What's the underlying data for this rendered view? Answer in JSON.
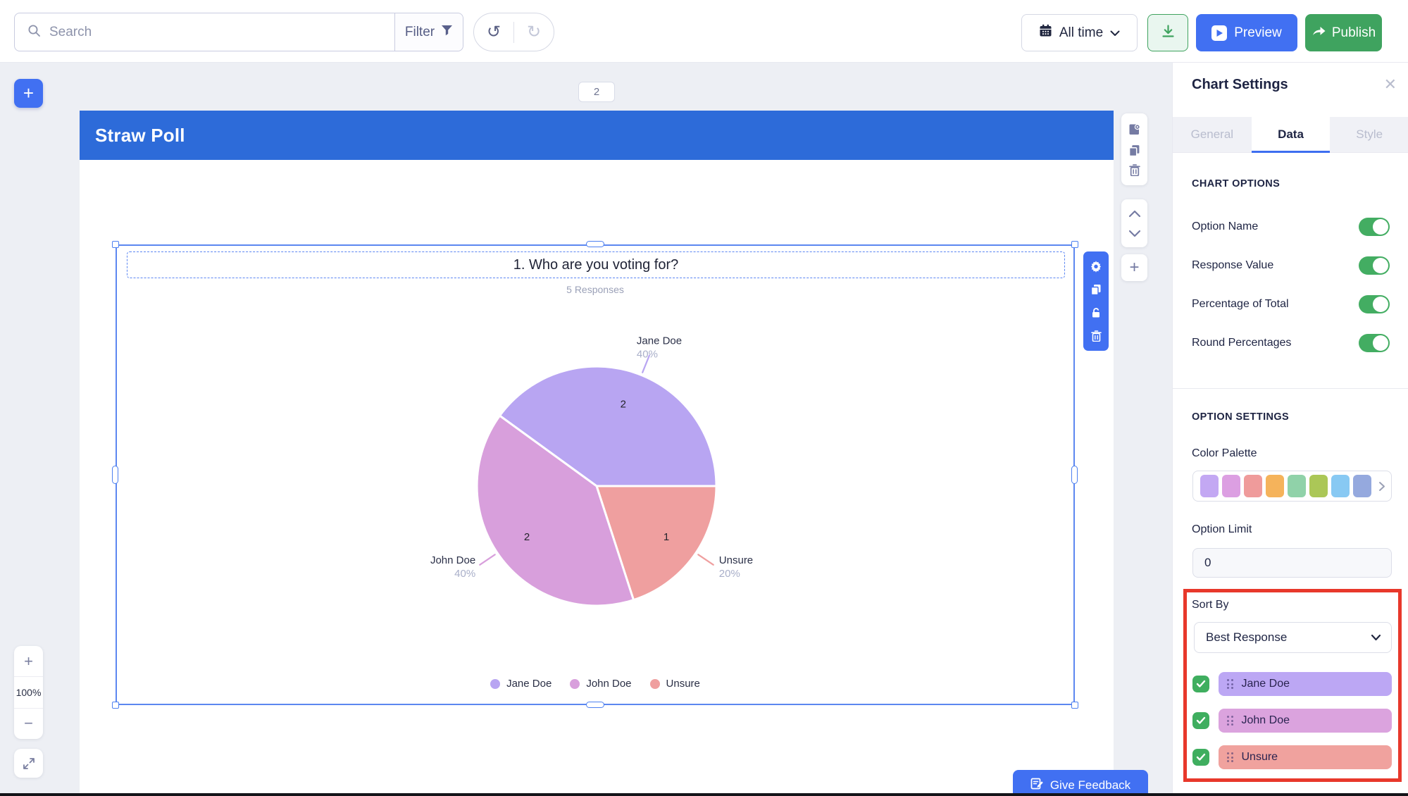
{
  "topbar": {
    "search_placeholder": "Search",
    "filter_label": "Filter",
    "time_range_value": "All time",
    "preview_label": "Preview",
    "publish_label": "Publish"
  },
  "canvas": {
    "page_number": "2",
    "section_title": "Straw Poll",
    "zoom_level": "100%",
    "give_feedback_label": "Give Feedback"
  },
  "chart_data": {
    "type": "pie",
    "title": "1. Who are you voting for?",
    "subtitle": "5 Responses",
    "total_responses": 5,
    "start_angle_deg": -54,
    "value_label_radius": 0.72,
    "slices": [
      {
        "name": "Jane Doe",
        "value": 2,
        "percent": "40%",
        "color": "#b8a5f2",
        "callout_angle": 22
      },
      {
        "name": "Unsure",
        "value": 1,
        "percent": "20%",
        "color": "#ef9f9f",
        "callout_angle": 124
      },
      {
        "name": "John Doe",
        "value": 2,
        "percent": "40%",
        "color": "#d89fdc",
        "callout_angle": 236
      }
    ],
    "legend": [
      {
        "label": "Jane Doe",
        "color": "#b8a5f2"
      },
      {
        "label": "John Doe",
        "color": "#d89fdc"
      },
      {
        "label": "Unsure",
        "color": "#ef9f9f"
      }
    ]
  },
  "panel": {
    "title": "Chart Settings",
    "tabs": [
      {
        "label": "General",
        "active": false
      },
      {
        "label": "Data",
        "active": true
      },
      {
        "label": "Style",
        "active": false
      }
    ],
    "chart_options_heading": "CHART OPTIONS",
    "toggles": [
      {
        "label": "Option Name",
        "on": true
      },
      {
        "label": "Response Value",
        "on": true
      },
      {
        "label": "Percentage of Total",
        "on": true
      },
      {
        "label": "Round Percentages",
        "on": true
      }
    ],
    "option_settings_heading": "OPTION SETTINGS",
    "color_palette_label": "Color Palette",
    "palette_colors": [
      "#c3a8f3",
      "#dc9fe2",
      "#ef9b9b",
      "#f5b35b",
      "#90d2a9",
      "#abc757",
      "#88c9f3",
      "#95a9de"
    ],
    "option_limit_label": "Option Limit",
    "option_limit_value": "0",
    "sort_by_label": "Sort By",
    "sort_by_value": "Best Response",
    "options": [
      {
        "label": "Jane Doe",
        "color": "#bca7f4",
        "checked": true
      },
      {
        "label": "John Doe",
        "color": "#dba3de",
        "checked": true
      },
      {
        "label": "Unsure",
        "color": "#f0a29e",
        "checked": true
      }
    ]
  },
  "colors": {
    "accent_blue": "#4170f2",
    "header_blue": "#2d6bd9",
    "publish_green": "#3fa35f",
    "toggle_green": "#43ad62",
    "highlight_red": "#e8382b"
  }
}
